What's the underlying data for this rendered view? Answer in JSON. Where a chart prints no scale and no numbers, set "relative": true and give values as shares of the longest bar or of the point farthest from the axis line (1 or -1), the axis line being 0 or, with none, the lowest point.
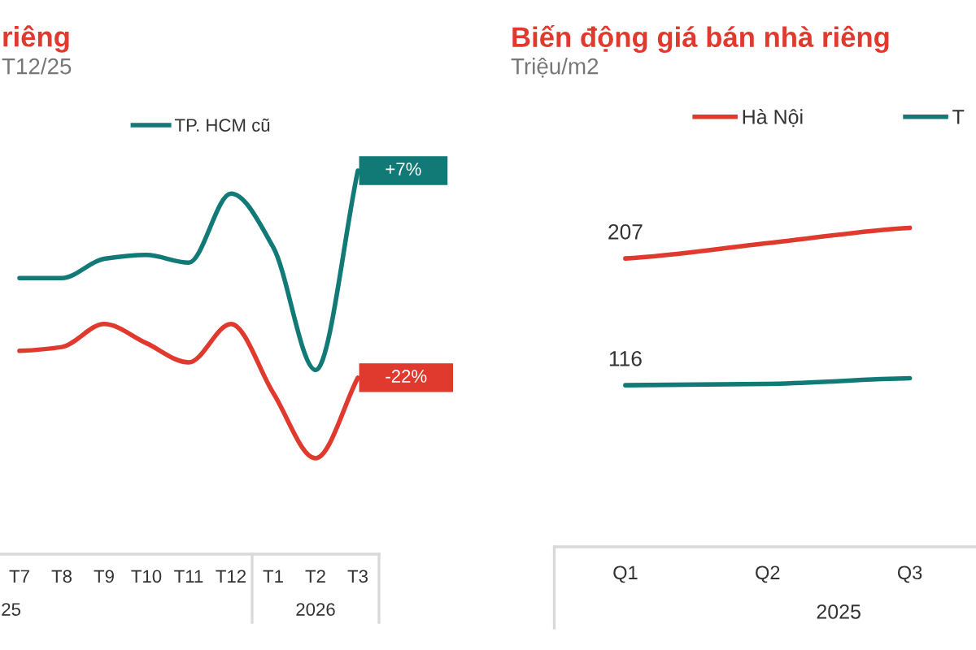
{
  "chart_data": [
    {
      "type": "line",
      "title": "riêng",
      "subtitle": "T12/25",
      "relative": true,
      "legend": "top",
      "categories": [
        "T7",
        "T8",
        "T9",
        "T10",
        "T11",
        "T12",
        "T1",
        "T2",
        "T3"
      ],
      "series": [
        {
          "color": "#e0392e",
          "values": [
            0.53,
            0.54,
            0.6,
            0.55,
            0.5,
            0.6,
            0.42,
            0.25,
            0.46
          ]
        },
        {
          "name": "TP. HCM cũ",
          "color": "#117a76",
          "values": [
            0.72,
            0.72,
            0.77,
            0.78,
            0.76,
            0.94,
            0.8,
            0.48,
            1
          ]
        }
      ],
      "annotations": [
        "25",
        "2026",
        {
          "text": "+7%",
          "x": "T3",
          "y": 1
        },
        {
          "text": "-22%",
          "x": "T3",
          "y": 0.46
        }
      ]
    },
    {
      "type": "line",
      "title": "Biến động giá bán nhà riêng",
      "subtitle": "Triệu/m2",
      "tick_labels": "x",
      "legend": "top",
      "categories": [
        "Q1",
        "Q2",
        "Q3"
      ],
      "series": [
        {
          "name": "Hà Nội",
          "color": "#e0392e",
          "values": [
            207,
            218,
            229
          ],
          "value_labels": [
            "207",
            null,
            null
          ]
        },
        {
          "name": "T",
          "color": "#117a76",
          "values": [
            116,
            117,
            121
          ],
          "value_labels": [
            "116",
            null,
            null
          ]
        }
      ],
      "annotations": [
        "2025"
      ]
    }
  ]
}
